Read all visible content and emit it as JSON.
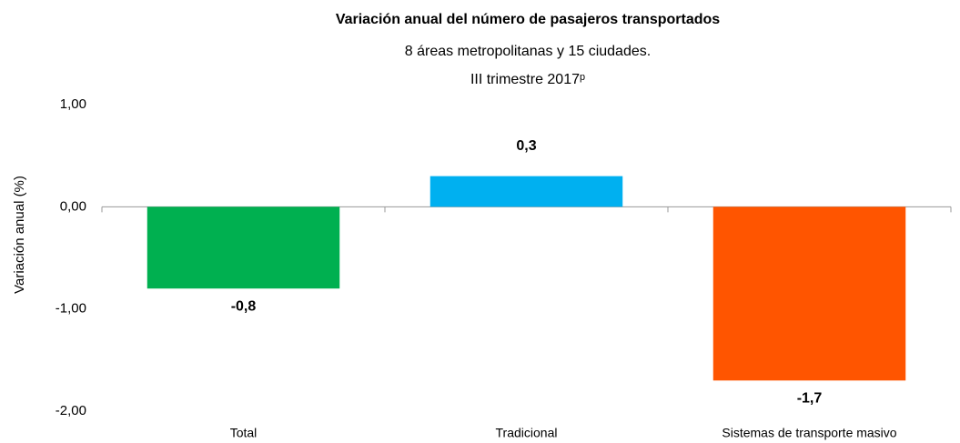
{
  "chart_data": {
    "type": "bar",
    "title": "Variación anual del número de pasajeros transportados",
    "subtitle": [
      "8 áreas metropolitanas y 15 ciudades.",
      "III trimestre  2017ᵖ"
    ],
    "y_label": "Variación anual (%)",
    "categories": [
      "Total",
      "Tradicional",
      "Sistemas de transporte masivo"
    ],
    "values": [
      -0.8,
      0.3,
      -1.7
    ],
    "value_labels": [
      "-0,8",
      "0,3",
      "-1,7"
    ],
    "colors": [
      "#00b050",
      "#00b0f0",
      "#ff5500"
    ],
    "ylim": [
      -2,
      1
    ],
    "yticks": [
      {
        "value": 1,
        "label": "1,00"
      },
      {
        "value": 0,
        "label": "0,00"
      },
      {
        "value": -1,
        "label": "-1,00"
      },
      {
        "value": -2,
        "label": "-2,00"
      }
    ],
    "grid": false
  }
}
